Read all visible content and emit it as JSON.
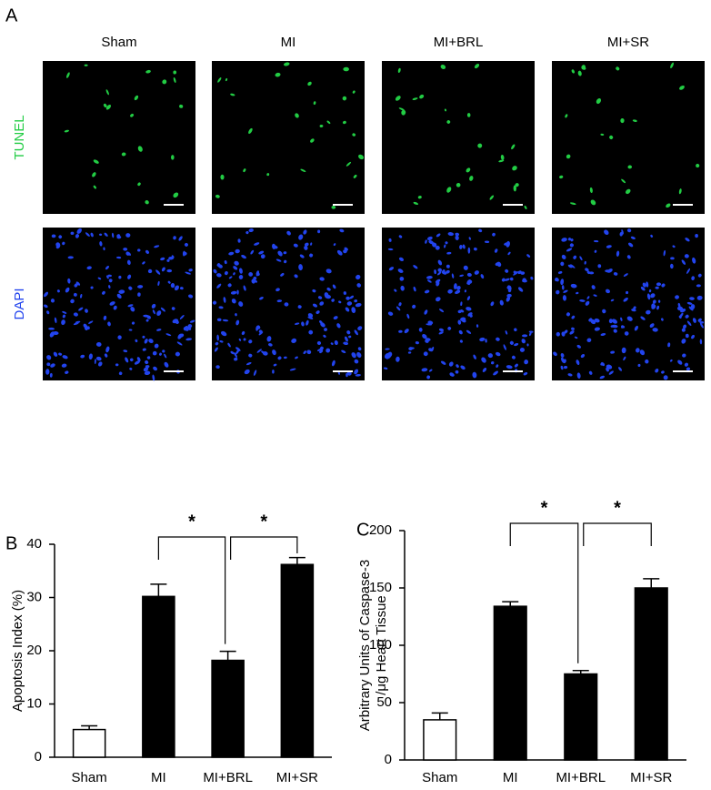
{
  "panel_a": {
    "label": "A",
    "columns": [
      "Sham",
      "MI",
      "MI+BRL",
      "MI+SR"
    ],
    "rows": [
      {
        "label": "TUNEL",
        "color": "#22cc44"
      },
      {
        "label": "DAPI",
        "color": "#2244ee"
      }
    ]
  },
  "chart_data": [
    {
      "type": "bar",
      "panel": "B",
      "ylabel": "Apoptosis Index (%)",
      "categories": [
        "Sham",
        "MI",
        "MI+BRL",
        "MI+SR"
      ],
      "values": [
        5.2,
        30.2,
        18.2,
        36.2
      ],
      "errors": [
        0.7,
        2.3,
        1.7,
        1.3
      ],
      "colors": [
        "#ffffff",
        "#000000",
        "#000000",
        "#000000"
      ],
      "ylim": [
        0,
        40
      ],
      "yticks": [
        0,
        10,
        20,
        30,
        40
      ],
      "annotations": [
        {
          "text": "*",
          "between": [
            "MI",
            "MI+BRL"
          ]
        },
        {
          "text": "*",
          "between": [
            "MI+BRL",
            "MI+SR"
          ]
        }
      ]
    },
    {
      "type": "bar",
      "panel": "C",
      "ylabel": [
        "Arbitrary Units of Caspase-3",
        "/μg Heart Tissue"
      ],
      "categories": [
        "Sham",
        "MI",
        "MI+BRL",
        "MI+SR"
      ],
      "values": [
        35,
        134,
        75,
        150
      ],
      "errors": [
        6,
        4,
        3,
        8
      ],
      "colors": [
        "#ffffff",
        "#000000",
        "#000000",
        "#000000"
      ],
      "ylim": [
        0,
        200
      ],
      "yticks": [
        0,
        50,
        100,
        150,
        200
      ],
      "annotations": [
        {
          "text": "*",
          "between": [
            "MI",
            "MI+BRL"
          ]
        },
        {
          "text": "*",
          "between": [
            "MI+BRL",
            "MI+SR"
          ]
        }
      ]
    }
  ]
}
